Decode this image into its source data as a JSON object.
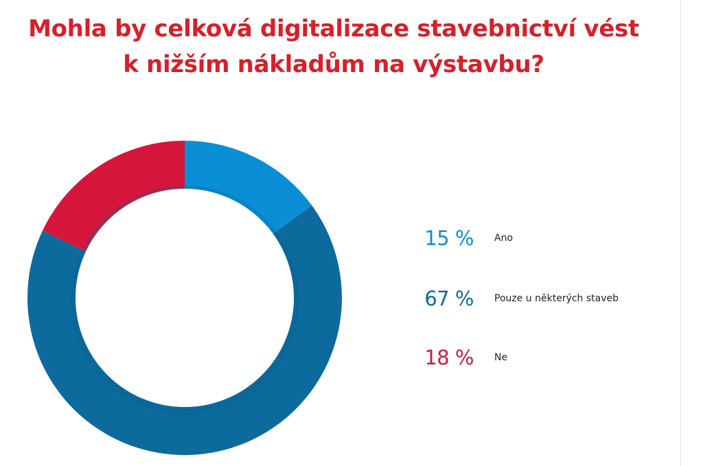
{
  "chart_data": {
    "type": "pie",
    "variant": "donut",
    "title_lines": [
      "Mohla by celková digitalizace stavebnictví vést",
      "k nižším nákladům na výstavbu?"
    ],
    "unit": "%",
    "slices": [
      {
        "label": "Ano",
        "value": 15,
        "value_label": "15 %",
        "color": "#0a8fd6"
      },
      {
        "label": "Pouze u některých staveb",
        "value": 67,
        "value_label": "67 %",
        "color": "#0d6a9c"
      },
      {
        "label": "Ne",
        "value": 18,
        "value_label": "18 %",
        "color": "#d5163a"
      }
    ],
    "start_angle_deg": 0,
    "direction": "clockwise",
    "legend_placement": "right"
  },
  "colors": {
    "title": "#d81f2a",
    "inner_shadow": "#0b5f8e"
  }
}
